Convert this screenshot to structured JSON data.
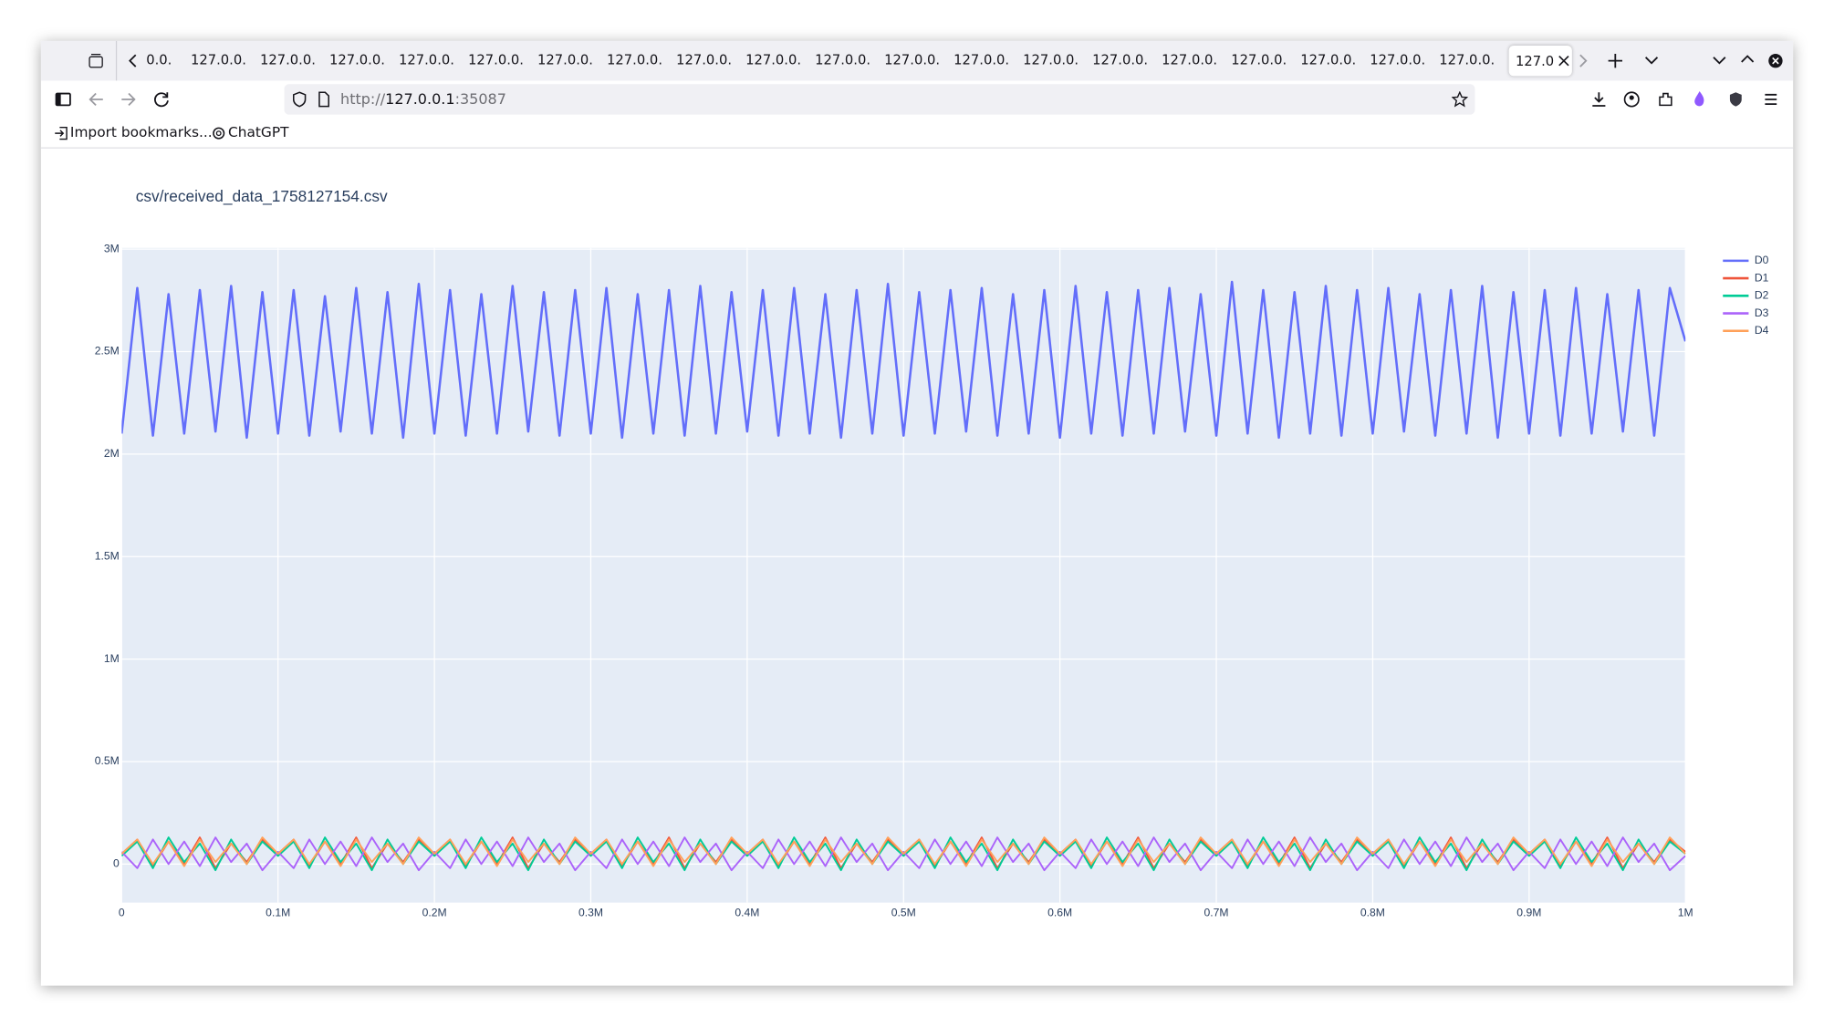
{
  "browser": {
    "tabs": [
      "0.0.",
      "127.0.0.",
      "127.0.0.",
      "127.0.0.",
      "127.0.0.",
      "127.0.0.",
      "127.0.0.",
      "127.0.0.",
      "127.0.0.",
      "127.0.0.",
      "127.0.0.",
      "127.0.0.",
      "127.0.0.",
      "127.0.0.",
      "127.0.0.",
      "127.0.0.",
      "127.0.0.",
      "127.0.0.",
      "127.0.0.",
      "127.0.0.",
      "127.0"
    ],
    "url": {
      "scheme": "http://",
      "host": "127.0.0.1",
      "port": ":35087"
    },
    "bookmarks": [
      "Import bookmarks...",
      "ChatGPT"
    ]
  },
  "chart_data": {
    "type": "line",
    "title": "csv/received_data_1758127154.csv",
    "x": [
      0,
      10000.0,
      20000.0,
      30000.0,
      40000.0,
      50000.0,
      60000.0,
      70000.0,
      80000.0,
      90000.0,
      100000.0,
      110000.0,
      120000.0,
      130000.0,
      140000.0,
      150000.0,
      160000.0,
      170000.0,
      180000.0,
      190000.0,
      200000.0,
      210000.0,
      220000.0,
      230000.0,
      240000.0,
      250000.0,
      260000.0,
      270000.0,
      280000.0,
      290000.0,
      300000.0,
      310000.0,
      320000.0,
      330000.0,
      340000.0,
      350000.0,
      360000.0,
      370000.0,
      380000.0,
      390000.0,
      400000.0,
      410000.0,
      420000.0,
      430000.0,
      440000.0,
      450000.0,
      460000.0,
      470000.0,
      480000.0,
      490000.0,
      500000.0,
      510000.0,
      520000.0,
      530000.0,
      540000.0,
      550000.0,
      560000.0,
      570000.0,
      580000.0,
      590000.0,
      600000.0,
      610000.0,
      620000.0,
      630000.0,
      640000.0,
      650000.0,
      660000.0,
      670000.0,
      680000.0,
      690000.0,
      700000.0,
      710000.0,
      720000.0,
      730000.0,
      740000.0,
      750000.0,
      760000.0,
      770000.0,
      780000.0,
      790000.0,
      800000.0,
      810000.0,
      820000.0,
      830000.0,
      840000.0,
      850000.0,
      860000.0,
      870000.0,
      880000.0,
      890000.0,
      900000.0,
      910000.0,
      920000.0,
      930000.0,
      940000.0,
      950000.0,
      960000.0,
      970000.0,
      980000.0,
      990000.0,
      1000000.0
    ],
    "series": [
      {
        "name": "D0",
        "color": "#636efa",
        "values": [
          2100000.0,
          2810000.0,
          2090000.0,
          2780000.0,
          2100000.0,
          2800000.0,
          2110000.0,
          2820000.0,
          2080000.0,
          2790000.0,
          2100000.0,
          2800000.0,
          2090000.0,
          2770000.0,
          2110000.0,
          2810000.0,
          2100000.0,
          2790000.0,
          2080000.0,
          2830000.0,
          2100000.0,
          2800000.0,
          2090000.0,
          2780000.0,
          2100000.0,
          2820000.0,
          2110000.0,
          2790000.0,
          2090000.0,
          2800000.0,
          2100000.0,
          2810000.0,
          2080000.0,
          2780000.0,
          2100000.0,
          2800000.0,
          2090000.0,
          2820000.0,
          2100000.0,
          2790000.0,
          2110000.0,
          2800000.0,
          2090000.0,
          2810000.0,
          2100000.0,
          2780000.0,
          2080000.0,
          2800000.0,
          2100000.0,
          2830000.0,
          2090000.0,
          2790000.0,
          2100000.0,
          2800000.0,
          2110000.0,
          2810000.0,
          2090000.0,
          2780000.0,
          2100000.0,
          2800000.0,
          2080000.0,
          2820000.0,
          2100000.0,
          2790000.0,
          2090000.0,
          2800000.0,
          2100000.0,
          2810000.0,
          2110000.0,
          2780000.0,
          2090000.0,
          2840000.0,
          2100000.0,
          2800000.0,
          2080000.0,
          2790000.0,
          2100000.0,
          2820000.0,
          2090000.0,
          2800000.0,
          2100000.0,
          2810000.0,
          2110000.0,
          2780000.0,
          2090000.0,
          2800000.0,
          2100000.0,
          2820000.0,
          2080000.0,
          2790000.0,
          2100000.0,
          2800000.0,
          2090000.0,
          2810000.0,
          2100000.0,
          2780000.0,
          2110000.0,
          2800000.0,
          2090000.0,
          2810000.0,
          2550000.0
        ]
      },
      {
        "name": "D1",
        "color": "#EF553B",
        "values": [
          50000.0,
          120000.0,
          -10000.0,
          110000.0,
          0,
          130000.0,
          -20000.0,
          100000.0,
          10000.0,
          120000.0,
          50000.0,
          120000.0,
          -10000.0,
          110000.0,
          0,
          130000.0,
          -20000.0,
          100000.0,
          10000.0,
          120000.0,
          50000.0,
          120000.0,
          -10000.0,
          110000.0,
          0,
          130000.0,
          -20000.0,
          100000.0,
          10000.0,
          120000.0,
          50000.0,
          120000.0,
          -10000.0,
          110000.0,
          0,
          130000.0,
          -20000.0,
          100000.0,
          10000.0,
          120000.0,
          50000.0,
          120000.0,
          -10000.0,
          110000.0,
          0,
          130000.0,
          -20000.0,
          100000.0,
          10000.0,
          120000.0,
          50000.0,
          120000.0,
          -10000.0,
          110000.0,
          0,
          130000.0,
          -20000.0,
          100000.0,
          10000.0,
          120000.0,
          50000.0,
          120000.0,
          -10000.0,
          110000.0,
          0,
          130000.0,
          -20000.0,
          100000.0,
          10000.0,
          120000.0,
          50000.0,
          120000.0,
          -10000.0,
          110000.0,
          0,
          130000.0,
          -20000.0,
          100000.0,
          10000.0,
          120000.0,
          50000.0,
          120000.0,
          -10000.0,
          110000.0,
          0,
          130000.0,
          -20000.0,
          100000.0,
          10000.0,
          120000.0,
          50000.0,
          120000.0,
          -10000.0,
          110000.0,
          0,
          130000.0,
          -20000.0,
          100000.0,
          10000.0,
          120000.0,
          60000.0
        ]
      },
      {
        "name": "D2",
        "color": "#00cc96",
        "values": [
          40000.0,
          110000.0,
          -20000.0,
          130000.0,
          10000.0,
          100000.0,
          -30000.0,
          120000.0,
          0,
          110000.0,
          40000.0,
          110000.0,
          -20000.0,
          130000.0,
          10000.0,
          100000.0,
          -30000.0,
          120000.0,
          0,
          110000.0,
          40000.0,
          110000.0,
          -20000.0,
          130000.0,
          10000.0,
          100000.0,
          -30000.0,
          120000.0,
          0,
          110000.0,
          40000.0,
          110000.0,
          -20000.0,
          130000.0,
          10000.0,
          100000.0,
          -30000.0,
          120000.0,
          0,
          110000.0,
          40000.0,
          110000.0,
          -20000.0,
          130000.0,
          10000.0,
          100000.0,
          -30000.0,
          120000.0,
          0,
          110000.0,
          40000.0,
          110000.0,
          -20000.0,
          130000.0,
          10000.0,
          100000.0,
          -30000.0,
          120000.0,
          0,
          110000.0,
          40000.0,
          110000.0,
          -20000.0,
          130000.0,
          10000.0,
          100000.0,
          -30000.0,
          120000.0,
          0,
          110000.0,
          40000.0,
          110000.0,
          -20000.0,
          130000.0,
          10000.0,
          100000.0,
          -30000.0,
          120000.0,
          0,
          110000.0,
          40000.0,
          110000.0,
          -20000.0,
          130000.0,
          10000.0,
          100000.0,
          -30000.0,
          120000.0,
          0,
          110000.0,
          40000.0,
          110000.0,
          -20000.0,
          130000.0,
          10000.0,
          100000.0,
          -30000.0,
          120000.0,
          0,
          110000.0,
          50000.0
        ]
      },
      {
        "name": "D3",
        "color": "#ab63fa",
        "values": [
          60000.0,
          -20000.0,
          120000.0,
          0,
          110000.0,
          -10000.0,
          130000.0,
          10000.0,
          100000.0,
          -30000.0,
          60000.0,
          -20000.0,
          120000.0,
          0,
          110000.0,
          -10000.0,
          130000.0,
          10000.0,
          100000.0,
          -30000.0,
          60000.0,
          -20000.0,
          120000.0,
          0,
          110000.0,
          -10000.0,
          130000.0,
          10000.0,
          100000.0,
          -30000.0,
          60000.0,
          -20000.0,
          120000.0,
          0,
          110000.0,
          -10000.0,
          130000.0,
          10000.0,
          100000.0,
          -30000.0,
          60000.0,
          -20000.0,
          120000.0,
          0,
          110000.0,
          -10000.0,
          130000.0,
          10000.0,
          100000.0,
          -30000.0,
          60000.0,
          -20000.0,
          120000.0,
          0,
          110000.0,
          -10000.0,
          130000.0,
          10000.0,
          100000.0,
          -30000.0,
          60000.0,
          -20000.0,
          120000.0,
          0,
          110000.0,
          -10000.0,
          130000.0,
          10000.0,
          100000.0,
          -30000.0,
          60000.0,
          -20000.0,
          120000.0,
          0,
          110000.0,
          -10000.0,
          130000.0,
          10000.0,
          100000.0,
          -30000.0,
          60000.0,
          -20000.0,
          120000.0,
          0,
          110000.0,
          -10000.0,
          130000.0,
          10000.0,
          100000.0,
          -30000.0,
          60000.0,
          -20000.0,
          120000.0,
          0,
          110000.0,
          -10000.0,
          130000.0,
          10000.0,
          100000.0,
          -30000.0,
          40000.0
        ]
      },
      {
        "name": "D4",
        "color": "#FFA15A",
        "values": [
          50000.0,
          120000.0,
          0,
          110000.0,
          -10000.0,
          120000.0,
          10000.0,
          100000.0,
          0,
          130000.0,
          50000.0,
          120000.0,
          0,
          110000.0,
          -10000.0,
          120000.0,
          10000.0,
          100000.0,
          0,
          130000.0,
          50000.0,
          120000.0,
          0,
          110000.0,
          -10000.0,
          120000.0,
          10000.0,
          100000.0,
          0,
          130000.0,
          50000.0,
          120000.0,
          0,
          110000.0,
          -10000.0,
          120000.0,
          10000.0,
          100000.0,
          0,
          130000.0,
          50000.0,
          120000.0,
          0,
          110000.0,
          -10000.0,
          120000.0,
          10000.0,
          100000.0,
          0,
          130000.0,
          50000.0,
          120000.0,
          0,
          110000.0,
          -10000.0,
          120000.0,
          10000.0,
          100000.0,
          0,
          130000.0,
          50000.0,
          120000.0,
          0,
          110000.0,
          -10000.0,
          120000.0,
          10000.0,
          100000.0,
          0,
          130000.0,
          50000.0,
          120000.0,
          0,
          110000.0,
          -10000.0,
          120000.0,
          10000.0,
          100000.0,
          0,
          130000.0,
          50000.0,
          120000.0,
          0,
          110000.0,
          -10000.0,
          120000.0,
          10000.0,
          100000.0,
          0,
          130000.0,
          50000.0,
          120000.0,
          0,
          110000.0,
          -10000.0,
          120000.0,
          10000.0,
          100000.0,
          0,
          130000.0,
          50000.0
        ]
      }
    ],
    "xlim": [
      0,
      1000000
    ],
    "ylim": [
      -188000,
      3006000
    ],
    "xticks": [
      0,
      {
        "value": 100000,
        "label": "0.1M"
      },
      {
        "value": 200000,
        "label": "0.2M"
      },
      {
        "value": 300000,
        "label": "0.3M"
      },
      {
        "value": 400000,
        "label": "0.4M"
      },
      {
        "value": 500000,
        "label": "0.5M"
      },
      {
        "value": 600000,
        "label": "0.6M"
      },
      {
        "value": 700000,
        "label": "0.7M"
      },
      {
        "value": 800000,
        "label": "0.8M"
      },
      {
        "value": 900000,
        "label": "0.9M"
      },
      {
        "value": 1000000,
        "label": "1M"
      }
    ],
    "yticks": [
      0,
      {
        "value": 500000,
        "label": "0.5M"
      },
      {
        "value": 1000000,
        "label": "1M"
      },
      {
        "value": 1500000,
        "label": "1.5M"
      },
      {
        "value": 2000000,
        "label": "2M"
      },
      {
        "value": 2500000,
        "label": "2.5M"
      },
      {
        "value": 3000000,
        "label": "3M"
      }
    ],
    "grid": true,
    "legend": "right"
  }
}
